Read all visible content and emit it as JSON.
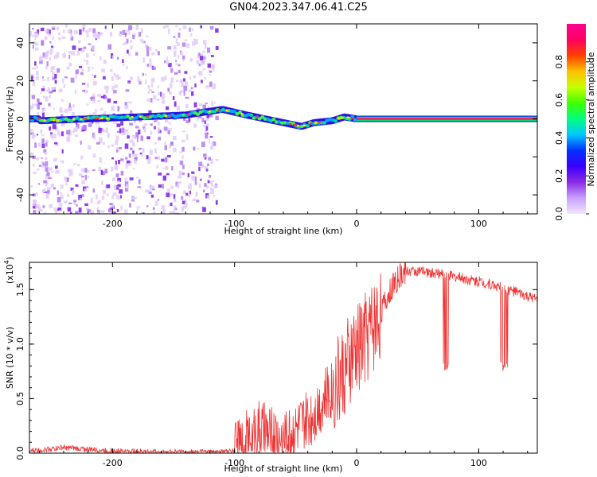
{
  "title": "GN04.2023.347.06.41.C25",
  "chart_data": [
    {
      "type": "heatmap",
      "xlabel": "Height of straight line (km)",
      "ylabel": "Frequency (Hz)",
      "xlim": [
        -268,
        148
      ],
      "ylim": [
        -50,
        50
      ],
      "x_ticks": [
        -200,
        -100,
        0,
        100
      ],
      "y_ticks": [
        40,
        20,
        0,
        -20,
        -40
      ],
      "colorbar": {
        "label": "Normalized spectral amplitude",
        "range": [
          0,
          1
        ],
        "ticks": [
          "0.0",
          "0.2",
          "0.4",
          "0.6",
          "0.8"
        ],
        "colors": [
          "#f0e6ff",
          "#c8a0ff",
          "#8a2be2",
          "#3a00ff",
          "#0030ff",
          "#00c8ff",
          "#00ff80",
          "#40ff00",
          "#c8ff00",
          "#ffc000",
          "#ff4000",
          "#ff0060",
          "#ff0090"
        ]
      },
      "ridge": [
        {
          "x": -260,
          "y": -1
        },
        {
          "x": -220,
          "y": 0
        },
        {
          "x": -180,
          "y": 1
        },
        {
          "x": -140,
          "y": 2
        },
        {
          "x": -110,
          "y": 5
        },
        {
          "x": -90,
          "y": 2
        },
        {
          "x": -75,
          "y": 0
        },
        {
          "x": -60,
          "y": -2
        },
        {
          "x": -45,
          "y": -4
        },
        {
          "x": -35,
          "y": -2
        },
        {
          "x": -20,
          "y": -1
        },
        {
          "x": -10,
          "y": 1
        },
        {
          "x": 0,
          "y": 0
        }
      ],
      "constant_band": {
        "x_from": 0,
        "x_to": 148,
        "y": 0
      }
    },
    {
      "type": "line",
      "xlabel": "Height of straight line (km)",
      "ylabel": "SNR (10 * v/v)",
      "scale_note": "(x10",
      "scale_exp": "4",
      "xlim": [
        -268,
        148
      ],
      "ylim": [
        0,
        1.75
      ],
      "x_ticks": [
        -200,
        -100,
        0,
        100
      ],
      "y_ticks": [
        "0.0",
        "0.5",
        "1.0",
        "1.5"
      ],
      "color": "#ee3333",
      "series": [
        {
          "points": [
            {
              "x": -268,
              "y": 0.02
            },
            {
              "x": -240,
              "y": 0.05
            },
            {
              "x": -200,
              "y": 0.02
            },
            {
              "x": -150,
              "y": 0.01
            },
            {
              "x": -110,
              "y": 0.01
            },
            {
              "x": -100,
              "y": 0.02
            },
            {
              "x": -90,
              "y": 0.12
            },
            {
              "x": -80,
              "y": 0.22
            },
            {
              "x": -70,
              "y": 0.15
            },
            {
              "x": -60,
              "y": 0.12
            },
            {
              "x": -50,
              "y": 0.2
            },
            {
              "x": -40,
              "y": 0.3
            },
            {
              "x": -30,
              "y": 0.45
            },
            {
              "x": -20,
              "y": 0.6
            },
            {
              "x": -10,
              "y": 0.75
            },
            {
              "x": 0,
              "y": 0.95
            },
            {
              "x": 10,
              "y": 1.12
            },
            {
              "x": 20,
              "y": 1.3
            },
            {
              "x": 30,
              "y": 1.55
            },
            {
              "x": 40,
              "y": 1.67
            },
            {
              "x": 50,
              "y": 1.67
            },
            {
              "x": 70,
              "y": 1.64
            },
            {
              "x": 90,
              "y": 1.6
            },
            {
              "x": 110,
              "y": 1.55
            },
            {
              "x": 130,
              "y": 1.48
            },
            {
              "x": 148,
              "y": 1.4
            }
          ]
        }
      ]
    }
  ]
}
